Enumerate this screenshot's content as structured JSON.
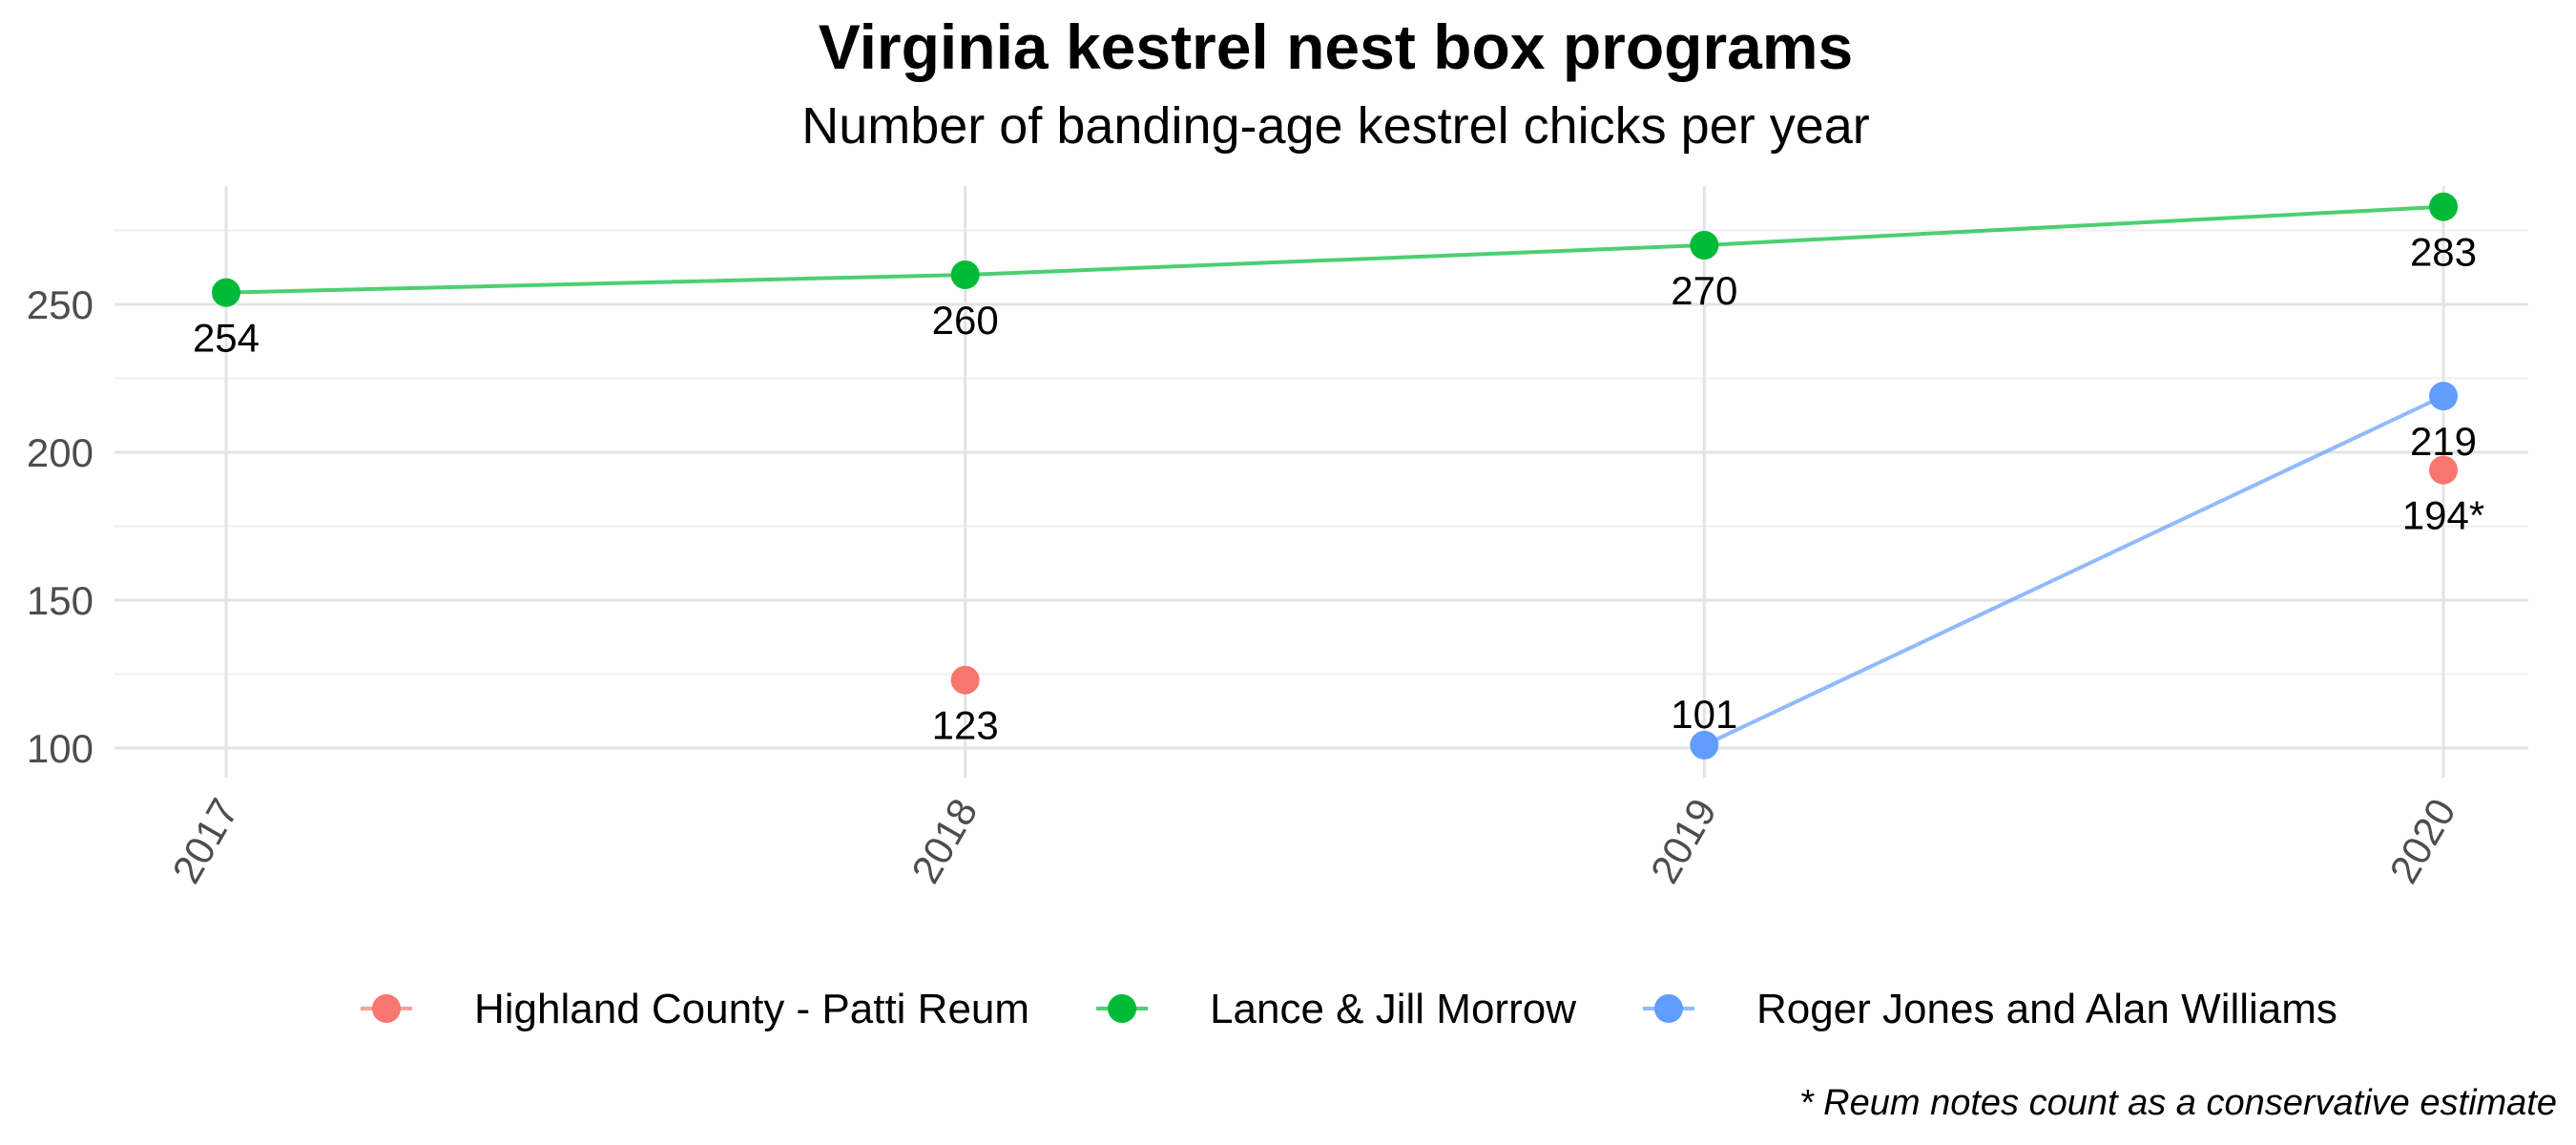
{
  "chart_data": {
    "type": "line",
    "title": "Virginia kestrel nest box programs",
    "subtitle": "Number of banding-age kestrel chicks per year",
    "caption": "* Reum notes count as a conservative estimate",
    "xlabel": "",
    "ylabel": "",
    "categories": [
      "2017",
      "2018",
      "2019",
      "2020"
    ],
    "ylim": [
      90,
      290
    ],
    "yticks": [
      100,
      150,
      200,
      250
    ],
    "grid": true,
    "legend_position": "bottom",
    "series": [
      {
        "name": "Highland County - Patti Reum",
        "color": "#F8766D",
        "points": [
          {
            "x": "2018",
            "y": 123,
            "label": "123"
          },
          {
            "x": "2020",
            "y": 194,
            "label": "194*"
          }
        ]
      },
      {
        "name": "Lance & Jill Morrow",
        "color": "#00BA38",
        "points": [
          {
            "x": "2017",
            "y": 254,
            "label": "254"
          },
          {
            "x": "2018",
            "y": 260,
            "label": "260"
          },
          {
            "x": "2019",
            "y": 270,
            "label": "270"
          },
          {
            "x": "2020",
            "y": 283,
            "label": "283"
          }
        ]
      },
      {
        "name": "Roger Jones and Alan Williams",
        "color": "#619CFF",
        "points": [
          {
            "x": "2019",
            "y": 101,
            "label": "101"
          },
          {
            "x": "2020",
            "y": 219,
            "label": "219"
          }
        ]
      }
    ]
  }
}
